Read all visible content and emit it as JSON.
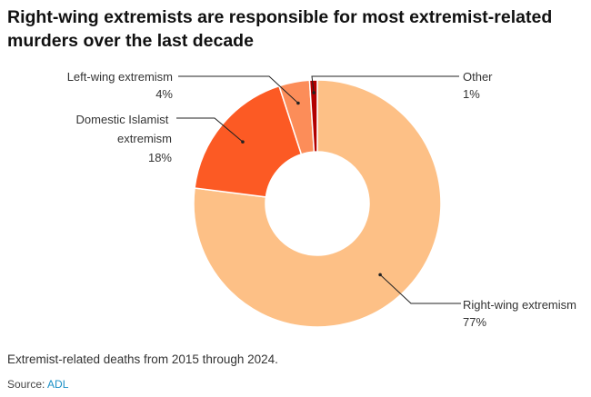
{
  "title": "Right-wing extremists are responsible for most extremist-related murders over the last decade",
  "note": "Extremist-related deaths from 2015 through 2024.",
  "source_prefix": "Source: ",
  "source_link": "ADL",
  "chart_data": {
    "type": "pie",
    "donut": true,
    "slices": [
      {
        "name": "Right-wing extremism",
        "value": 77,
        "label": "77%",
        "color": "#fdc086"
      },
      {
        "name": "Domestic Islamist extremism",
        "value": 18,
        "label": "18%",
        "color": "#fc5a24"
      },
      {
        "name": "Left-wing extremism",
        "value": 4,
        "label": "4%",
        "color": "#fc8d59"
      },
      {
        "name": "Other",
        "value": 1,
        "label": "1%",
        "color": "#b30000"
      }
    ]
  }
}
